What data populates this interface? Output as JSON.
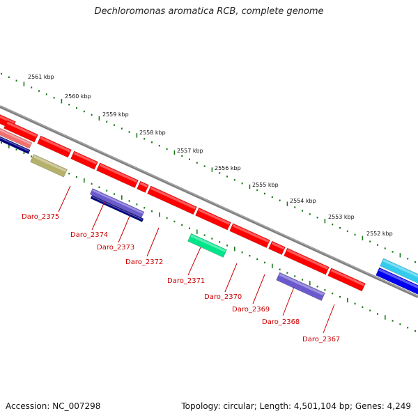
{
  "title": "Dechloromonas aromatica RCB, complete genome",
  "footer": {
    "accession": "Accession: NC_007298",
    "summary": "Topology: circular; Length: 4,501,104 bp; Genes: 4,249"
  },
  "kbp_labels": [
    "2561 kbp",
    "2560 kbp",
    "2559 kbp",
    "2558 kbp",
    "2557 kbp",
    "2556 kbp",
    "2555 kbp",
    "2554 kbp",
    "2553 kbp",
    "2552 kbp"
  ],
  "gene_labels": [
    "Daro_2375",
    "Daro_2374",
    "Daro_2373",
    "Daro_2372",
    "Daro_2371",
    "Daro_2370",
    "Daro_2369",
    "Daro_2368",
    "Daro_2367"
  ],
  "colors": {
    "forward_cds": "#ff0000",
    "backbone": "#808080",
    "tick": "#1a7a1a",
    "label_line": "#cc0000",
    "olive": "#b5b06a",
    "navy": "#000080",
    "slate": "#6a5acd",
    "spring_green": "#00e58a",
    "sky": "#33ccee",
    "blue": "#0000ee",
    "salmon": "#f07070"
  }
}
